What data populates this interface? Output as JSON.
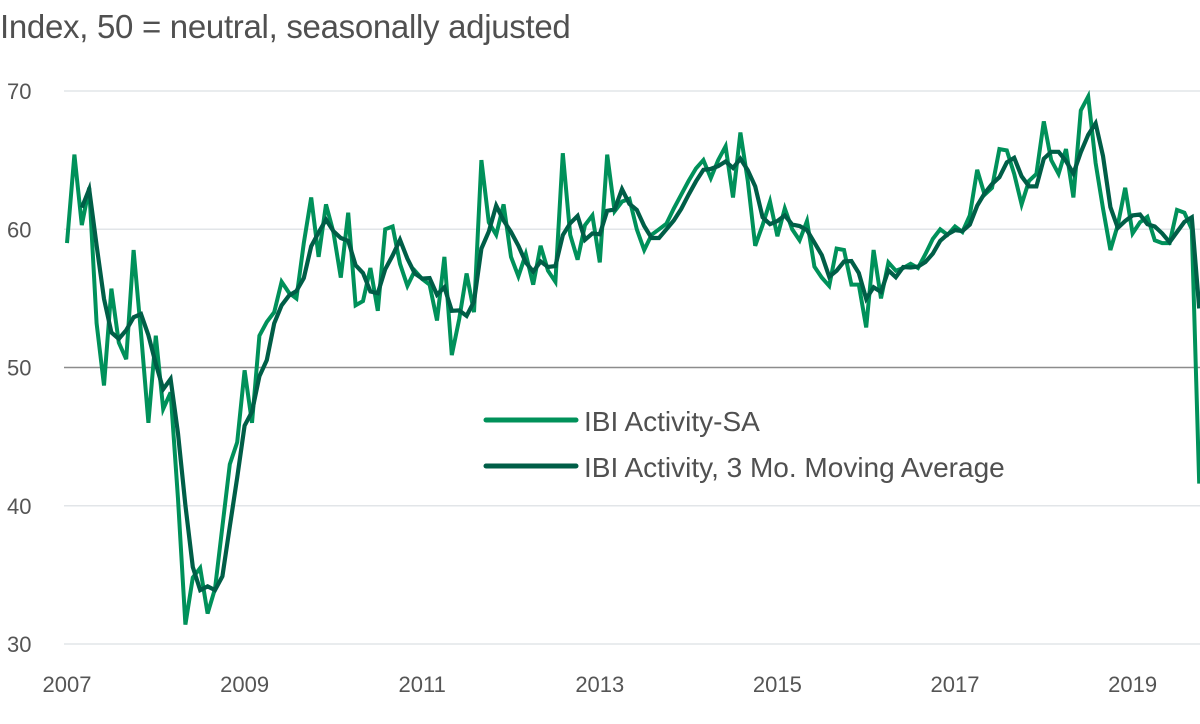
{
  "chart_data": {
    "type": "line",
    "title": "Index, 50 = neutral, seasonally adjusted",
    "xlabel": "",
    "ylabel": "",
    "ylim": [
      30,
      70
    ],
    "yticks": [
      30,
      40,
      50,
      60,
      70
    ],
    "xticks": [
      "2007",
      "2009",
      "2011",
      "2013",
      "2015",
      "2017",
      "2019"
    ],
    "x_start": "2007-01",
    "x_frequency": "monthly",
    "grid": true,
    "reference_line": 50,
    "legend_position": "center-right",
    "colors": {
      "sa": "#00915A",
      "ma": "#005E47",
      "grid": "#E2E5E8",
      "reference": "#8C8C8C"
    },
    "series": [
      {
        "name": "IBI Activity-SA",
        "key": "sa",
        "values": [
          59.0,
          65.4,
          60.3,
          63.0,
          53.2,
          48.7,
          55.7,
          51.8,
          50.6,
          58.5,
          52.5,
          46.0,
          52.3,
          47.0,
          48.2,
          40.5,
          31.4,
          34.8,
          35.5,
          32.2,
          34.0,
          38.5,
          43.0,
          44.6,
          49.8,
          46.0,
          52.3,
          53.3,
          54.0,
          56.2,
          55.4,
          55.0,
          59.0,
          62.3,
          58.0,
          61.8,
          59.8,
          56.5,
          61.2,
          54.5,
          54.8,
          57.2,
          54.1,
          60.0,
          60.2,
          57.5,
          55.9,
          57.0,
          56.4,
          56.0,
          53.4,
          58.0,
          50.9,
          53.5,
          56.8,
          54.0,
          65.0,
          60.5,
          59.6,
          61.8,
          58.0,
          56.6,
          58.2,
          56.0,
          58.8,
          57.0,
          56.2,
          65.5,
          59.6,
          57.8,
          60.3,
          61.0,
          57.6,
          65.4,
          61.3,
          62.0,
          62.2,
          60.0,
          58.5,
          59.6,
          60.0,
          60.4,
          61.5,
          62.5,
          63.5,
          64.4,
          65.0,
          63.7,
          65.0,
          66.0,
          62.3,
          67.0,
          63.5,
          58.8,
          60.3,
          62.0,
          59.5,
          61.5,
          60.0,
          59.2,
          60.6,
          57.3,
          56.5,
          55.9,
          58.6,
          58.5,
          56.0,
          56.0,
          52.9,
          58.5,
          55.0,
          57.6,
          57.0,
          57.2,
          57.5,
          57.2,
          58.2,
          59.3,
          60.0,
          59.6,
          60.2,
          59.8,
          61.0,
          64.3,
          62.5,
          63.0,
          65.8,
          65.7,
          64.0,
          61.8,
          63.5,
          64.0,
          67.8,
          65.0,
          64.0,
          65.8,
          62.3,
          68.6,
          69.6,
          64.8,
          61.5,
          58.5,
          60.3,
          63.0,
          59.7,
          60.5,
          60.9,
          59.2,
          59.0,
          59.0,
          61.4,
          61.2,
          60.0,
          41.6
        ]
      },
      {
        "name": "IBI Activity, 3 Mo. Moving Average",
        "key": "ma",
        "derived_from": "sa",
        "window": 3
      }
    ],
    "legend": [
      {
        "label": "IBI Activity-SA",
        "key": "sa"
      },
      {
        "label": "IBI Activity, 3 Mo. Moving Average",
        "key": "ma"
      }
    ]
  }
}
